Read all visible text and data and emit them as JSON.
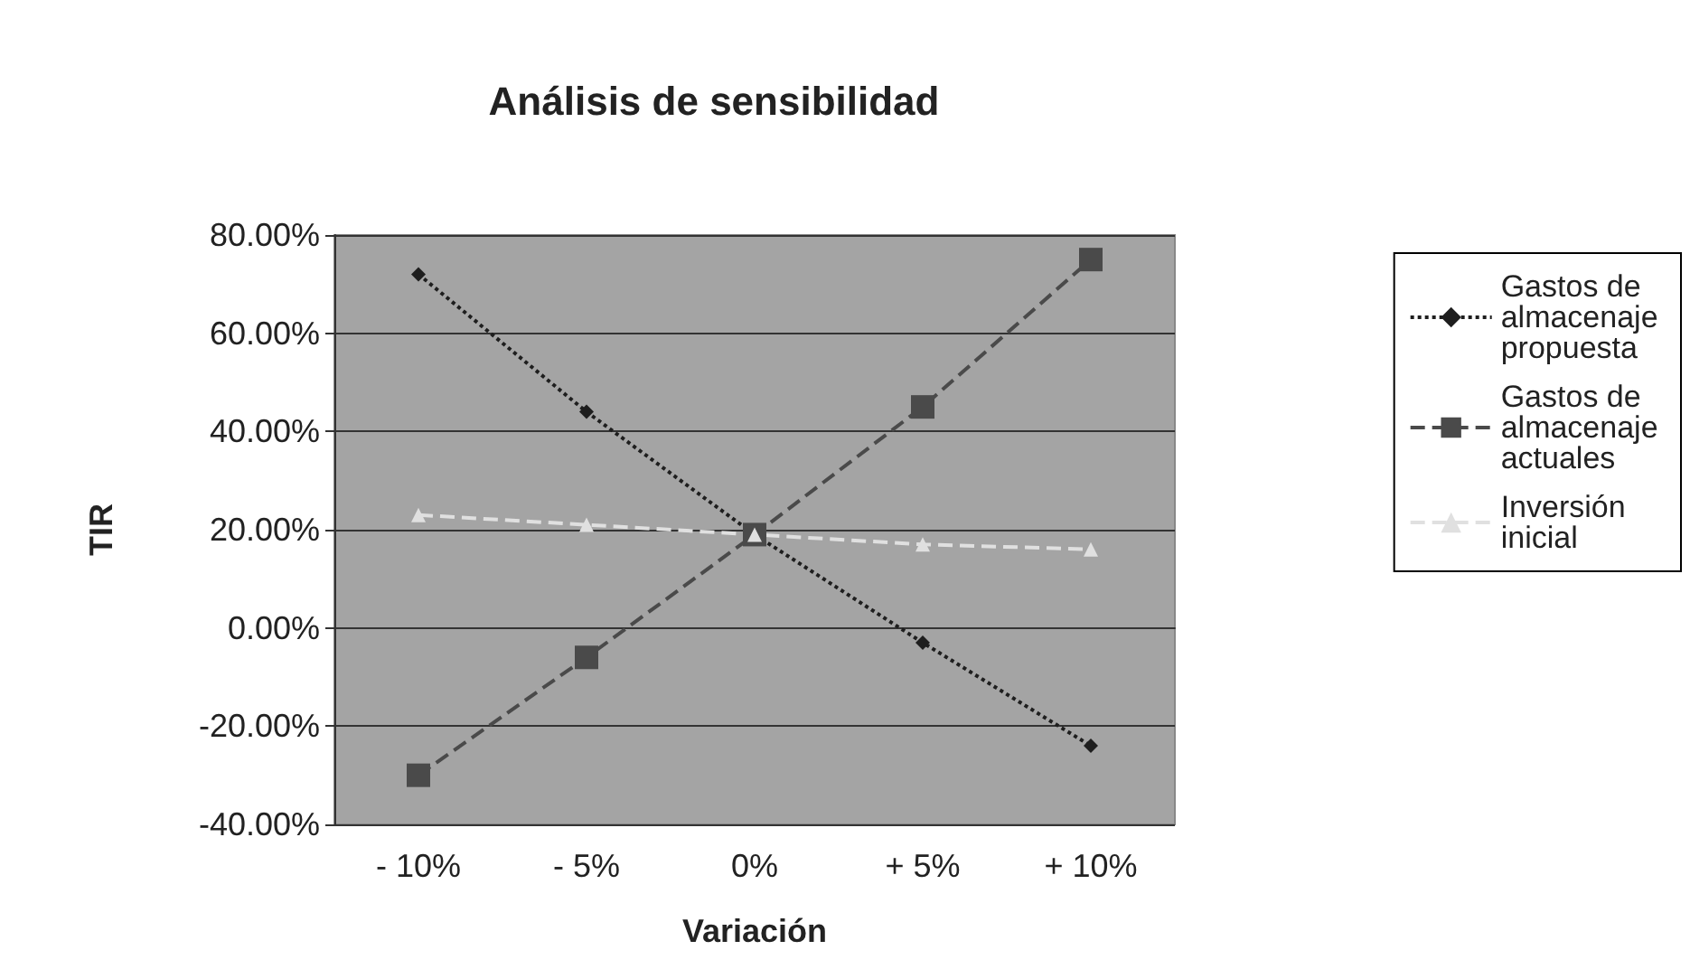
{
  "chart_data": {
    "type": "line",
    "title": "Análisis de sensibilidad",
    "xlabel": "Variación",
    "ylabel": "TIR",
    "categories": [
      "- 10%",
      "- 5%",
      "0%",
      "+ 5%",
      "+ 10%"
    ],
    "series": [
      {
        "name": "Gastos de almacenaje propuesta",
        "color": "#1e1e1e",
        "marker": "diamond",
        "line_style": "dotted",
        "values": [
          72,
          44,
          19,
          -3,
          -24
        ]
      },
      {
        "name": "Gastos de almacenaje actuales",
        "color": "#4a4a4a",
        "marker": "square",
        "line_style": "dashed",
        "values": [
          -30,
          -6,
          19,
          45,
          75
        ]
      },
      {
        "name": "Inversión inicial",
        "color": "#e0e0e0",
        "marker": "triangle",
        "line_style": "dashed",
        "values": [
          23,
          21,
          19,
          17,
          16
        ]
      }
    ],
    "ylim": [
      -40,
      80
    ],
    "yticks": [
      {
        "value": -40,
        "label": "-40.00%"
      },
      {
        "value": -20,
        "label": "-20.00%"
      },
      {
        "value": 0,
        "label": "0.00%"
      },
      {
        "value": 20,
        "label": "20.00%"
      },
      {
        "value": 40,
        "label": "40.00%"
      },
      {
        "value": 60,
        "label": "60.00%"
      },
      {
        "value": 80,
        "label": "80.00%"
      }
    ],
    "grid": "y",
    "legend": "right"
  }
}
